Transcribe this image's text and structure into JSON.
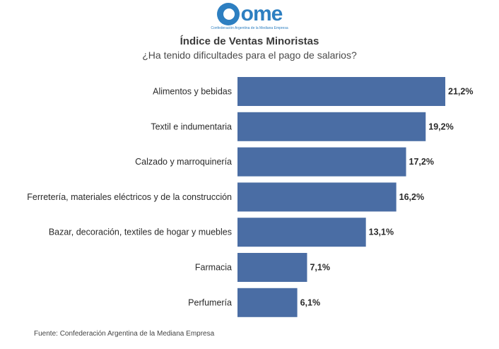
{
  "logo": {
    "text": "ome",
    "tagline": "Confederación Argentina de la Mediana Empresa",
    "color": "#2d7fc1"
  },
  "chart_data": {
    "type": "bar",
    "orientation": "horizontal",
    "title": "Índice de Ventas Minoristas",
    "subtitle": "¿Ha tenido dificultades para el pago de salarios?",
    "categories": [
      "Alimentos y bebidas",
      "Textil e indumentaria",
      "Calzado y marroquinería",
      "Ferretería, materiales eléctricos y de la construcción",
      "Bazar, decoración, textiles de hogar y muebles",
      "Farmacia",
      "Perfumería"
    ],
    "values": [
      21.2,
      19.2,
      17.2,
      16.2,
      13.1,
      7.1,
      6.1
    ],
    "value_labels": [
      "21,2%",
      "19,2%",
      "17,2%",
      "16,2%",
      "13,1%",
      "7,1%",
      "6,1%"
    ],
    "unit": "%",
    "xlim": [
      0,
      21.2
    ],
    "bar_color": "#4a6da4",
    "grid": false,
    "legend": "none"
  },
  "source": "Fuente: Confederación Argentina de la Mediana Empresa"
}
